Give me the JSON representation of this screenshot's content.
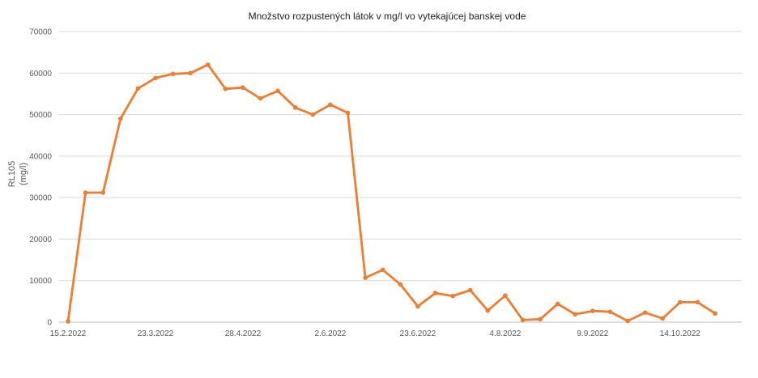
{
  "chart_data": {
    "type": "line",
    "title": "Množstvo rozpustených látok v mg/l vo vytekajúcej banskej vode",
    "ylabel_line1": "RL105",
    "ylabel_line2": "(mg/l)",
    "xlabel": "",
    "ylim": [
      0,
      70000
    ],
    "y_ticks": [
      0,
      10000,
      20000,
      30000,
      40000,
      50000,
      60000,
      70000
    ],
    "x_tick_labels": [
      {
        "index": 0,
        "label": "15.2.2022"
      },
      {
        "index": 5,
        "label": "23.3.2022"
      },
      {
        "index": 10,
        "label": "28.4.2022"
      },
      {
        "index": 15,
        "label": "2.6.2022"
      },
      {
        "index": 20,
        "label": "23.6.2022"
      },
      {
        "index": 25,
        "label": "4.8.2022"
      },
      {
        "index": 30,
        "label": "9.9.2022"
      },
      {
        "index": 35,
        "label": "14.10.2022"
      }
    ],
    "grid": true,
    "legend": "none",
    "colors": {
      "series": "#ED7D31",
      "grid": "#D9D9D9",
      "axis": "#BFBFBF"
    },
    "series": [
      {
        "values": [
          200,
          31200,
          31200,
          49000,
          56300,
          58800,
          59800,
          60000,
          62000,
          56200,
          56500,
          53900,
          55700,
          51700,
          50000,
          52400,
          50400,
          10700,
          12600,
          9100,
          3800,
          7000,
          6300,
          7700,
          2800,
          6400,
          500,
          700,
          4400,
          1900,
          2700,
          2500,
          300,
          2300,
          900,
          4800,
          4800,
          2100
        ]
      }
    ]
  }
}
